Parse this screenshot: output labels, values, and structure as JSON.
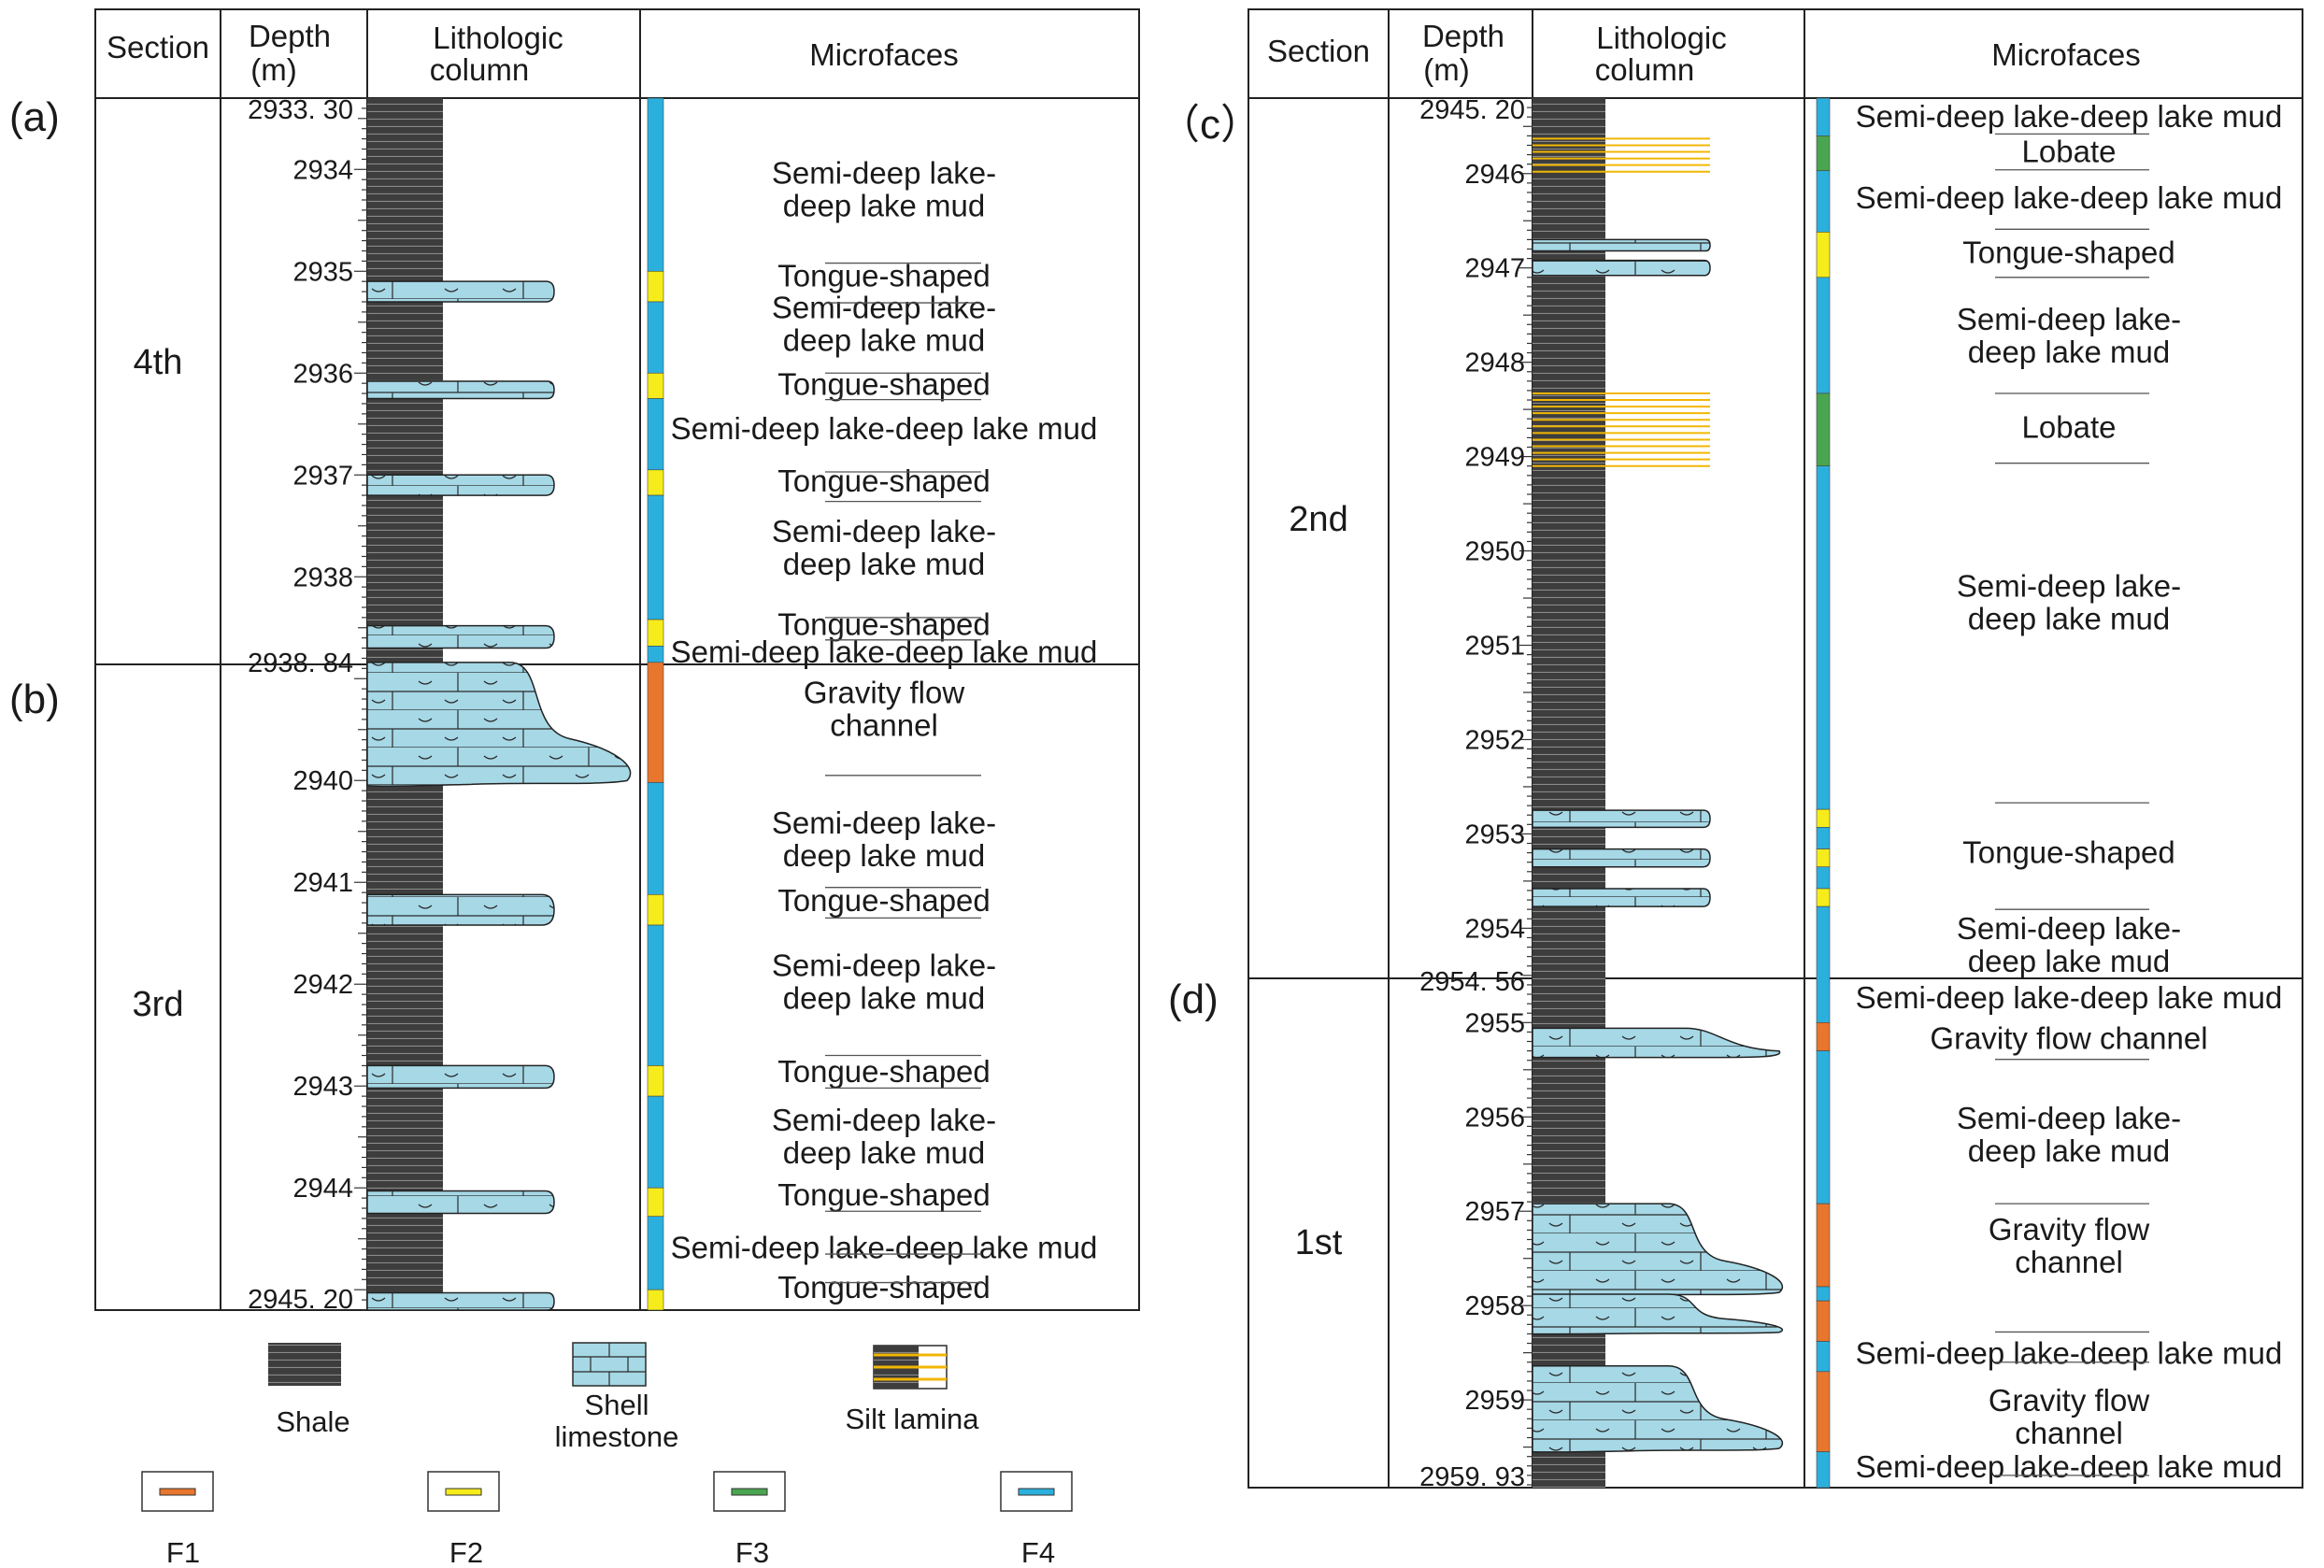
{
  "headers": {
    "section": "Section",
    "depth_line1": "Depth",
    "depth_line2": "(m)",
    "litho_line1": "Lithologic",
    "litho_line2": "column",
    "micro": "Microfaces"
  },
  "panel_labels": {
    "a": "(a)",
    "b": "(b)",
    "c": "（c）",
    "d": "(d)"
  },
  "left": {
    "sections": [
      {
        "label": "4th",
        "top": 2933.3,
        "bottom": 2938.84
      },
      {
        "label": "3rd",
        "top": 2938.84,
        "bottom": 2945.2
      }
    ],
    "depth_labels": [
      "2933. 30",
      "2934",
      "2935",
      "2936",
      "2937",
      "2938",
      "2938. 84",
      "2940",
      "2941",
      "2942",
      "2943",
      "2944",
      "2945. 20"
    ],
    "lithology": [
      {
        "type": "shell",
        "shape": "tongue",
        "top": 2935.1,
        "bottom": 2935.3
      },
      {
        "type": "shell",
        "shape": "tongue",
        "top": 2936.08,
        "bottom": 2936.25
      },
      {
        "type": "shell",
        "shape": "tongue",
        "top": 2937.0,
        "bottom": 2937.2
      },
      {
        "type": "shell",
        "shape": "tongue",
        "top": 2938.48,
        "bottom": 2938.7
      },
      {
        "type": "shell",
        "shape": "lobe",
        "top": 2938.84,
        "bottom": 2940.05
      },
      {
        "type": "shell",
        "shape": "tongue",
        "top": 2941.12,
        "bottom": 2941.42
      },
      {
        "type": "shell",
        "shape": "tongue",
        "top": 2942.8,
        "bottom": 2943.02
      },
      {
        "type": "shell",
        "shape": "tongue",
        "top": 2944.03,
        "bottom": 2944.25
      },
      {
        "type": "shell",
        "shape": "tongue",
        "top": 2945.03,
        "bottom": 2945.2
      }
    ],
    "facies_bar": [
      {
        "code": "F4",
        "top": 2933.3,
        "bottom": 2935.0
      },
      {
        "code": "F2",
        "top": 2935.0,
        "bottom": 2935.3
      },
      {
        "code": "F4",
        "top": 2935.3,
        "bottom": 2936.0
      },
      {
        "code": "F2",
        "top": 2936.0,
        "bottom": 2936.25
      },
      {
        "code": "F4",
        "top": 2936.25,
        "bottom": 2936.95
      },
      {
        "code": "F2",
        "top": 2936.95,
        "bottom": 2937.2
      },
      {
        "code": "F4",
        "top": 2937.2,
        "bottom": 2938.42
      },
      {
        "code": "F2",
        "top": 2938.42,
        "bottom": 2938.68
      },
      {
        "code": "F4",
        "top": 2938.68,
        "bottom": 2938.84
      },
      {
        "code": "F1",
        "top": 2938.84,
        "bottom": 2940.02
      },
      {
        "code": "F4",
        "top": 2940.02,
        "bottom": 2941.12
      },
      {
        "code": "F2",
        "top": 2941.12,
        "bottom": 2941.42
      },
      {
        "code": "F4",
        "top": 2941.42,
        "bottom": 2942.8
      },
      {
        "code": "F2",
        "top": 2942.8,
        "bottom": 2943.1
      },
      {
        "code": "F4",
        "top": 2943.1,
        "bottom": 2944.0
      },
      {
        "code": "F2",
        "top": 2944.0,
        "bottom": 2944.28
      },
      {
        "code": "F4",
        "top": 2944.28,
        "bottom": 2945.0
      },
      {
        "code": "F2",
        "top": 2945.0,
        "bottom": 2945.2
      }
    ],
    "microfacies": [
      {
        "lines": [
          "Semi-deep lake-",
          "deep lake mud"
        ],
        "at": 2934.2
      },
      {
        "lines": [
          "Tongue-shaped"
        ],
        "at": 2935.05
      },
      {
        "lines": [
          "Semi-deep lake-",
          "deep lake mud"
        ],
        "at": 2935.52
      },
      {
        "lines": [
          "Tongue-shaped"
        ],
        "at": 2936.11
      },
      {
        "lines": [
          "Semi-deep lake-deep lake mud"
        ],
        "at": 2936.55
      },
      {
        "lines": [
          "Tongue-shaped"
        ],
        "at": 2937.06
      },
      {
        "lines": [
          "Semi-deep lake-",
          "deep lake mud"
        ],
        "at": 2937.72
      },
      {
        "lines": [
          "Tongue-shaped"
        ],
        "at": 2938.47
      },
      {
        "lines": [
          "Semi-deep lake-deep lake mud"
        ],
        "at": 2938.74
      },
      {
        "lines": [
          "Gravity flow",
          "channel"
        ],
        "at": 2939.3
      },
      {
        "lines": [
          "Semi-deep lake-",
          "deep lake mud"
        ],
        "at": 2940.58
      },
      {
        "lines": [
          "Tongue-shaped"
        ],
        "at": 2941.18
      },
      {
        "lines": [
          "Semi-deep lake-",
          "deep lake mud"
        ],
        "at": 2941.98
      },
      {
        "lines": [
          "Tongue-shaped"
        ],
        "at": 2942.86
      },
      {
        "lines": [
          "Semi-deep lake-",
          "deep lake mud"
        ],
        "at": 2943.5
      },
      {
        "lines": [
          "Tongue-shaped"
        ],
        "at": 2944.07
      },
      {
        "lines": [
          "Semi-deep lake-deep lake mud"
        ],
        "at": 2944.59
      },
      {
        "lines": [
          "Tongue-shaped"
        ],
        "at": 2944.98
      }
    ],
    "dividers": [
      2934.92,
      2935.31,
      2936.0,
      2936.26,
      2936.97,
      2937.26,
      2938.4,
      2938.62,
      2939.95,
      2941.05,
      2941.35,
      2942.7,
      2943.02,
      2944.23,
      2944.65,
      2944.93
    ]
  },
  "right": {
    "sections": [
      {
        "label": "2nd",
        "top": 2945.2,
        "bottom": 2954.56
      },
      {
        "label": "1st",
        "top": 2954.56,
        "bottom": 2959.93
      }
    ],
    "depth_labels": [
      "2945. 20",
      "2946",
      "2947",
      "2948",
      "2949",
      "2950",
      "2951",
      "2952",
      "2953",
      "2954",
      "2954. 56",
      "2955",
      "2956",
      "2957",
      "2958",
      "2959",
      "2959. 93"
    ],
    "lithology": [
      {
        "type": "silt",
        "top": 2945.63,
        "bottom": 2945.98
      },
      {
        "type": "shell",
        "shape": "tongue",
        "top": 2946.7,
        "bottom": 2946.82
      },
      {
        "type": "shell",
        "shape": "tongue",
        "top": 2946.92,
        "bottom": 2947.08
      },
      {
        "type": "silt",
        "top": 2948.33,
        "bottom": 2949.1
      },
      {
        "type": "shell",
        "shape": "tongue",
        "top": 2952.75,
        "bottom": 2952.93
      },
      {
        "type": "shell",
        "shape": "tongue",
        "top": 2953.16,
        "bottom": 2953.35
      },
      {
        "type": "shell",
        "shape": "tongue",
        "top": 2953.58,
        "bottom": 2953.77
      },
      {
        "type": "shell",
        "shape": "tongue_long",
        "top": 2955.06,
        "bottom": 2955.37
      },
      {
        "type": "shell",
        "shape": "lobe",
        "top": 2956.92,
        "bottom": 2957.9
      },
      {
        "type": "shell",
        "shape": "lobe",
        "top": 2957.88,
        "bottom": 2958.3
      },
      {
        "type": "shell",
        "shape": "lobe",
        "top": 2958.64,
        "bottom": 2959.55
      }
    ],
    "facies_bar": [
      {
        "code": "F4",
        "top": 2945.2,
        "bottom": 2945.6
      },
      {
        "code": "F3",
        "top": 2945.6,
        "bottom": 2945.97
      },
      {
        "code": "F4",
        "top": 2945.97,
        "bottom": 2946.62
      },
      {
        "code": "F2",
        "top": 2946.62,
        "bottom": 2947.1
      },
      {
        "code": "F4",
        "top": 2947.1,
        "bottom": 2948.33
      },
      {
        "code": "F3",
        "top": 2948.33,
        "bottom": 2949.1
      },
      {
        "code": "F4",
        "top": 2949.1,
        "bottom": 2952.74
      },
      {
        "code": "F2",
        "top": 2952.74,
        "bottom": 2952.93
      },
      {
        "code": "F4",
        "top": 2952.93,
        "bottom": 2953.16
      },
      {
        "code": "F2",
        "top": 2953.16,
        "bottom": 2953.35
      },
      {
        "code": "F4",
        "top": 2953.35,
        "bottom": 2953.58
      },
      {
        "code": "F2",
        "top": 2953.58,
        "bottom": 2953.77
      },
      {
        "code": "F4",
        "top": 2953.77,
        "bottom": 2955.0
      },
      {
        "code": "F1",
        "top": 2955.0,
        "bottom": 2955.3
      },
      {
        "code": "F4",
        "top": 2955.3,
        "bottom": 2956.92
      },
      {
        "code": "F1",
        "top": 2956.92,
        "bottom": 2957.8
      },
      {
        "code": "F4",
        "top": 2957.8,
        "bottom": 2957.95
      },
      {
        "code": "F1",
        "top": 2957.95,
        "bottom": 2958.38
      },
      {
        "code": "F4",
        "top": 2958.38,
        "bottom": 2958.7
      },
      {
        "code": "F1",
        "top": 2958.7,
        "bottom": 2959.55
      },
      {
        "code": "F4",
        "top": 2959.55,
        "bottom": 2959.93
      }
    ],
    "microfacies": [
      {
        "lines": [
          "Semi-deep lake-deep lake mud"
        ],
        "at": 2945.4
      },
      {
        "lines": [
          "Lobate"
        ],
        "at": 2945.77
      },
      {
        "lines": [
          "Semi-deep lake-deep lake mud"
        ],
        "at": 2946.26
      },
      {
        "lines": [
          "Tongue-shaped"
        ],
        "at": 2946.84
      },
      {
        "lines": [
          "Semi-deep lake-",
          "deep lake mud"
        ],
        "at": 2947.72
      },
      {
        "lines": [
          "Lobate"
        ],
        "at": 2948.69
      },
      {
        "lines": [
          "Semi-deep lake-",
          "deep lake mud"
        ],
        "at": 2950.55
      },
      {
        "lines": [
          "Tongue-shaped"
        ],
        "at": 2953.2
      },
      {
        "lines": [
          "Semi-deep lake-",
          "deep lake mud"
        ],
        "at": 2954.18
      },
      {
        "lines": [
          "Semi-deep lake-deep lake mud"
        ],
        "at": 2954.74
      },
      {
        "lines": [
          "Gravity flow channel"
        ],
        "at": 2955.17
      },
      {
        "lines": [
          "Semi-deep lake-",
          "deep lake mud"
        ],
        "at": 2956.19
      },
      {
        "lines": [
          "Gravity flow",
          "channel"
        ],
        "at": 2957.37
      },
      {
        "lines": [
          "Semi-deep lake-deep lake mud"
        ],
        "at": 2958.51
      },
      {
        "lines": [
          "Gravity flow",
          "channel"
        ],
        "at": 2959.18
      },
      {
        "lines": [
          "Semi-deep lake-deep lake mud"
        ],
        "at": 2959.71
      }
    ],
    "dividers": [
      2945.58,
      2945.96,
      2946.59,
      2947.1,
      2948.33,
      2949.07,
      2952.67,
      2953.8,
      2955.39,
      2956.92,
      2958.28,
      2958.6,
      2959.8
    ]
  },
  "legend": {
    "shale": "Shale",
    "shell_line1": "Shell",
    "shell_line2": "limestone",
    "silt": "Silt lamina",
    "f_labels": [
      "F1",
      "F2",
      "F3",
      "F4"
    ]
  },
  "colors": {
    "shale": "#3d3d3d",
    "shale_line": "#8a8a8a",
    "shell": "#a6d8e6",
    "silt": "#f2b705",
    "F1": "#e8762d",
    "F2": "#f6ec1b",
    "F3": "#4aa550",
    "F4": "#2bb0de"
  }
}
